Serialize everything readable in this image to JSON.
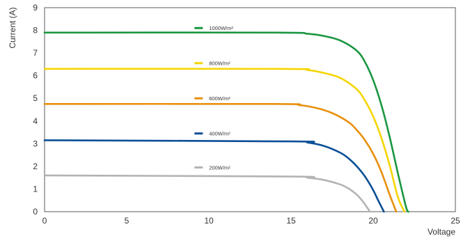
{
  "chart_data": {
    "type": "line",
    "title": "",
    "xlabel": "Voltage",
    "ylabel": "Current (A)",
    "xlim": [
      0,
      25
    ],
    "ylim": [
      0,
      9
    ],
    "x_ticks": [
      "0",
      "5",
      "10",
      "15",
      "20",
      "25"
    ],
    "y_ticks": [
      "0",
      "1",
      "2",
      "3",
      "4",
      "5",
      "6",
      "7",
      "8",
      "9"
    ],
    "grid": false,
    "legend": "inline labels",
    "series": [
      {
        "name": "1000W/m²",
        "color": "#1a9641",
        "x": [
          0,
          14,
          16,
          17,
          18,
          19,
          19.5,
          20,
          20.5,
          21,
          21.5,
          22,
          22.15
        ],
        "y": [
          7.9,
          7.9,
          7.85,
          7.75,
          7.55,
          7.1,
          6.6,
          5.8,
          4.7,
          3.3,
          1.7,
          0.2,
          0
        ]
      },
      {
        "name": "800W/m²",
        "color": "#f5d500",
        "x": [
          0,
          14.5,
          16,
          17,
          18,
          19,
          19.5,
          20,
          20.5,
          21,
          21.5,
          21.9
        ],
        "y": [
          6.3,
          6.3,
          6.25,
          6.12,
          5.9,
          5.4,
          4.9,
          4.2,
          3.25,
          2.05,
          0.65,
          0
        ]
      },
      {
        "name": "600W/m²",
        "color": "#e8900c",
        "x": [
          0,
          14,
          15.5,
          16.5,
          17.5,
          18.5,
          19,
          19.5,
          20,
          20.5,
          21,
          21.4
        ],
        "y": [
          4.75,
          4.75,
          4.7,
          4.58,
          4.35,
          3.95,
          3.6,
          3.15,
          2.55,
          1.75,
          0.75,
          0
        ]
      },
      {
        "name": "400W/m²",
        "color": "#0a4f96",
        "x": [
          0,
          15,
          16,
          17,
          18,
          18.5,
          19,
          19.5,
          20,
          20.3,
          20.65
        ],
        "y": [
          3.15,
          3.1,
          3.05,
          2.9,
          2.6,
          2.35,
          2.0,
          1.55,
          0.95,
          0.5,
          0
        ]
      },
      {
        "name": "200W/m²",
        "color": "#b3b3b3",
        "x": [
          0,
          15,
          16,
          17,
          18,
          18.5,
          19,
          19.4,
          19.8
        ],
        "y": [
          1.6,
          1.55,
          1.5,
          1.4,
          1.2,
          1.02,
          0.75,
          0.42,
          0
        ]
      }
    ],
    "legend_positions": [
      {
        "x": 9.8,
        "y": 8.1
      },
      {
        "x": 9.8,
        "y": 6.55
      },
      {
        "x": 9.8,
        "y": 5.0
      },
      {
        "x": 9.8,
        "y": 3.45
      },
      {
        "x": 9.8,
        "y": 1.95
      }
    ]
  }
}
